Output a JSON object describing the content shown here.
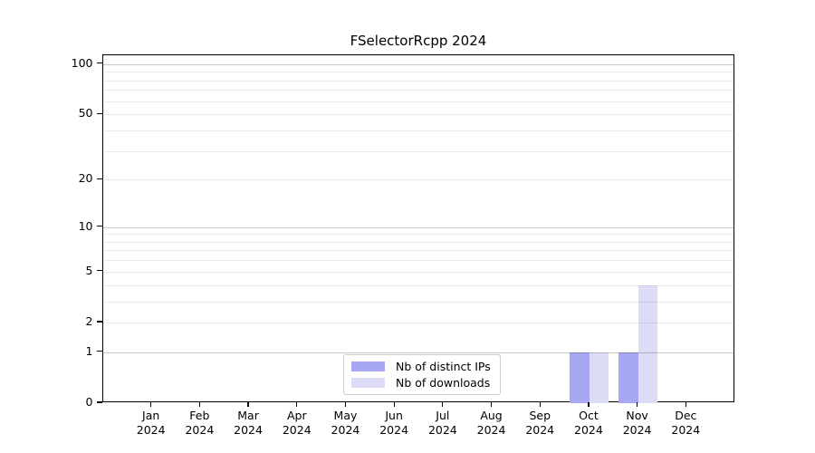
{
  "chart_data": {
    "type": "bar",
    "title": "FSelectorRcpp 2024",
    "categories": [
      "Jan 2024",
      "Feb 2024",
      "Mar 2024",
      "Apr 2024",
      "May 2024",
      "Jun 2024",
      "Jul 2024",
      "Aug 2024",
      "Sep 2024",
      "Oct 2024",
      "Nov 2024",
      "Dec 2024"
    ],
    "series": [
      {
        "name": "Nb of distinct IPs",
        "color": "#a8a8f2",
        "values": [
          0,
          0,
          0,
          0,
          0,
          0,
          0,
          0,
          0,
          1,
          1,
          0
        ]
      },
      {
        "name": "Nb of downloads",
        "color": "#dcdcf7",
        "values": [
          0,
          0,
          0,
          0,
          0,
          0,
          0,
          0,
          0,
          1,
          4,
          0
        ]
      }
    ],
    "xlabel": "",
    "ylabel": "",
    "yscale": "log1p",
    "ylim": [
      0,
      113
    ],
    "ytick_values": [
      0,
      1,
      2,
      5,
      10,
      20,
      50,
      100
    ],
    "ytick_labels": [
      "0",
      "1",
      "2",
      "5",
      "10",
      "20",
      "50",
      "100"
    ],
    "grid": "horizontal",
    "grid_major_values": [
      1,
      10,
      100
    ],
    "grid_minor_values": [
      2,
      3,
      4,
      5,
      6,
      7,
      8,
      9,
      20,
      30,
      40,
      50,
      60,
      70,
      80,
      90
    ],
    "legend_position": "bottom-center-inside",
    "colors": {
      "bar_distinct_ips": "#a8a8f2",
      "bar_downloads": "#dcdcf7",
      "grid_major": "#c9c9c9",
      "grid_minor": "#ebebeb",
      "axis": "#000000",
      "background": "#ffffff",
      "legend_border": "#cccccc"
    }
  }
}
